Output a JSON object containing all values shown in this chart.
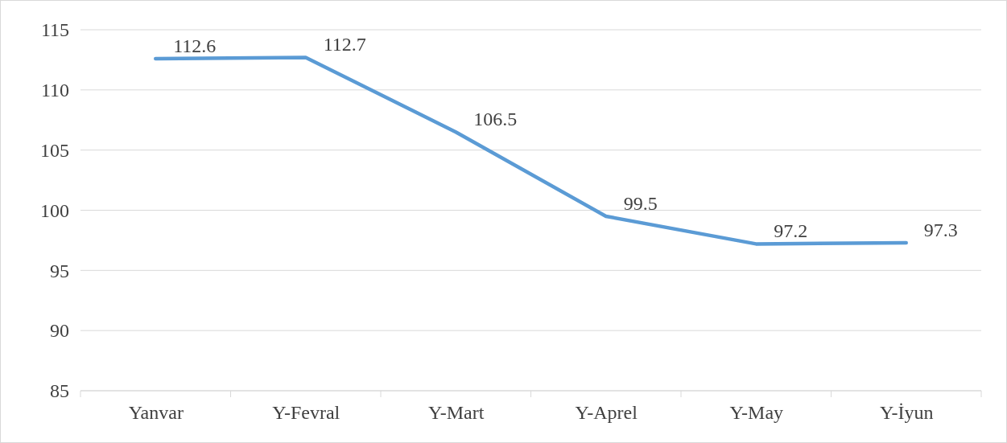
{
  "chart_data": {
    "type": "line",
    "categories": [
      "Yanvar",
      "Y-Fevral",
      "Y-Mart",
      "Y-Aprel",
      "Y-May",
      "Y-İyun"
    ],
    "series": [
      {
        "color": "#5b9bd5",
        "values": [
          112.6,
          112.7,
          106.5,
          99.5,
          97.2,
          97.3
        ]
      }
    ],
    "ylim": [
      85,
      115
    ],
    "yticks": [
      85,
      90,
      95,
      100,
      105,
      110,
      115
    ],
    "grid": "y",
    "data_labels": true,
    "marker": "none",
    "line_style": "solid"
  }
}
